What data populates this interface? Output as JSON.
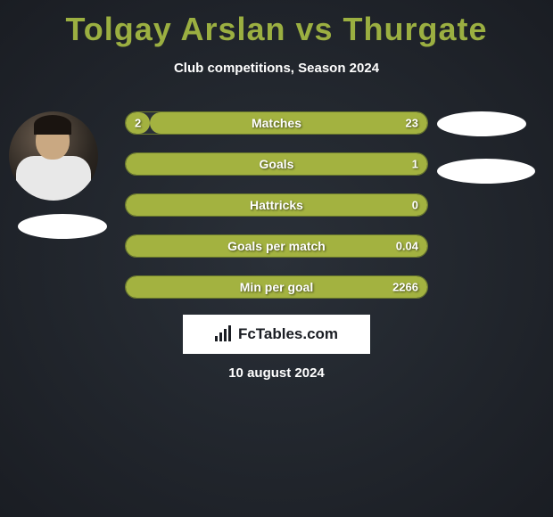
{
  "title": "Tolgay Arslan vs Thurgate",
  "subtitle": "Club competitions, Season 2024",
  "date": "10 august 2024",
  "logo_text": "FcTables.com",
  "colors": {
    "accent": "#9baf41",
    "bar_fill": "#a3b240",
    "bar_border": "#6b7a2e",
    "background_dark": "#1a1d23",
    "background_light": "#2a3038"
  },
  "stats": [
    {
      "label": "Matches",
      "left_value": "2",
      "right_value": "23",
      "left_pct": 8,
      "right_pct": 92
    },
    {
      "label": "Goals",
      "left_value": "",
      "right_value": "1",
      "left_pct": 0,
      "right_pct": 100
    },
    {
      "label": "Hattricks",
      "left_value": "",
      "right_value": "0",
      "left_pct": 0,
      "right_pct": 100
    },
    {
      "label": "Goals per match",
      "left_value": "",
      "right_value": "0.04",
      "left_pct": 0,
      "right_pct": 100
    },
    {
      "label": "Min per goal",
      "left_value": "",
      "right_value": "2266",
      "left_pct": 0,
      "right_pct": 100
    }
  ]
}
